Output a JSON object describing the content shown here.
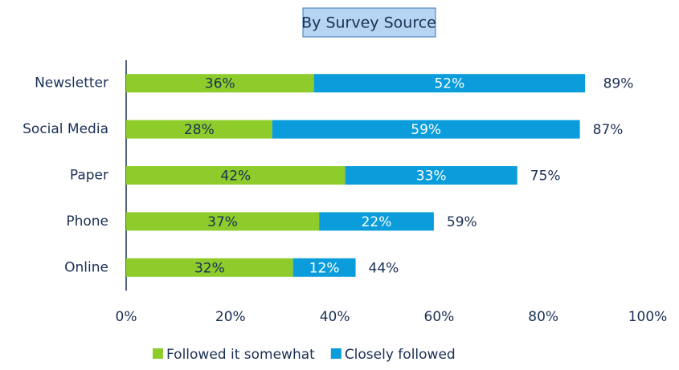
{
  "chart_data": {
    "type": "stacked-bar-horizontal",
    "title": "By Survey Source",
    "categories": [
      "Newsletter",
      "Social Media",
      "Paper",
      "Phone",
      "Online"
    ],
    "series": [
      {
        "name": "Followed it somewhat",
        "color": "#8dcc2a",
        "values": [
          36,
          28,
          42,
          37,
          32
        ],
        "value_labels": [
          "36%",
          "28%",
          "42%",
          "37%",
          "32%"
        ]
      },
      {
        "name": "Closely followed",
        "color": "#0b9ddb",
        "values": [
          52,
          59,
          33,
          22,
          12
        ],
        "value_labels": [
          "52%",
          "59%",
          "33%",
          "22%",
          "12%"
        ]
      }
    ],
    "totals": [
      89,
      87,
      75,
      59,
      44
    ],
    "total_labels": [
      "89%",
      "87%",
      "75%",
      "59%",
      "44%"
    ],
    "xlim": [
      0,
      100
    ],
    "xticks": [
      {
        "value": 0,
        "label": "0%"
      },
      {
        "value": 20,
        "label": "20%"
      },
      {
        "value": 40,
        "label": "40%"
      },
      {
        "value": 60,
        "label": "60%"
      },
      {
        "value": 80,
        "label": "80%"
      },
      {
        "value": 100,
        "label": "100%"
      }
    ],
    "legend": "bottom"
  }
}
